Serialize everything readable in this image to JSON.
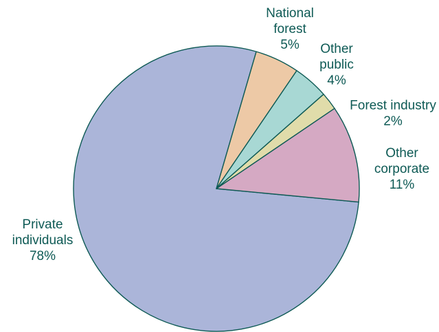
{
  "chart_data": {
    "type": "pie",
    "title": "",
    "slices": [
      {
        "name": "Private individuals",
        "value": 78,
        "label_lines": [
          "Private",
          "individuals",
          "78%"
        ],
        "color": "#abb5d9"
      },
      {
        "name": "National forest",
        "value": 5,
        "label_lines": [
          "National",
          "forest",
          "5%"
        ],
        "color": "#edc9a6"
      },
      {
        "name": "Other public",
        "value": 4,
        "label_lines": [
          "Other",
          "public",
          "4%"
        ],
        "color": "#a8d8d4"
      },
      {
        "name": "Forest industry",
        "value": 2,
        "label_lines": [
          "Forest industry",
          "2%"
        ],
        "color": "#e0dcaa"
      },
      {
        "name": "Other corporate",
        "value": 11,
        "label_lines": [
          "Other",
          "corporate",
          "11%"
        ],
        "color": "#d5a9c3"
      }
    ],
    "colors": {
      "outline": "#0e5a55",
      "label_text": "#0e5a55",
      "background": "#ffffff"
    },
    "legend": "none"
  }
}
